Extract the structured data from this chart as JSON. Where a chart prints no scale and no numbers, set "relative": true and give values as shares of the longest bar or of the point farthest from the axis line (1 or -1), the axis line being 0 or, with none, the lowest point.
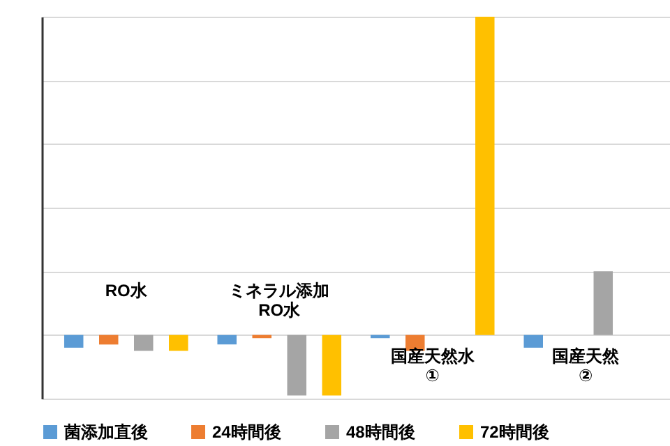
{
  "chart_data": {
    "type": "bar",
    "relative": true,
    "categories": [
      "RO水",
      "ミネラル添加\nRO水",
      "国産天然水\n①",
      "国産天然\n②"
    ],
    "series": [
      {
        "name": "菌添加直後",
        "color": "#5b9bd5",
        "values": [
          -0.04,
          -0.03,
          -0.01,
          -0.04
        ]
      },
      {
        "name": "24時間後",
        "color": "#ed7d31",
        "values": [
          -0.03,
          -0.01,
          -0.05,
          null
        ]
      },
      {
        "name": "48時間後",
        "color": "#a5a5a5",
        "values": [
          -0.05,
          -0.19,
          null,
          0.2
        ]
      },
      {
        "name": "72時間後",
        "color": "#ffc000",
        "values": [
          -0.05,
          -0.19,
          1,
          null
        ]
      }
    ],
    "grid": true,
    "legend": "bottom"
  }
}
